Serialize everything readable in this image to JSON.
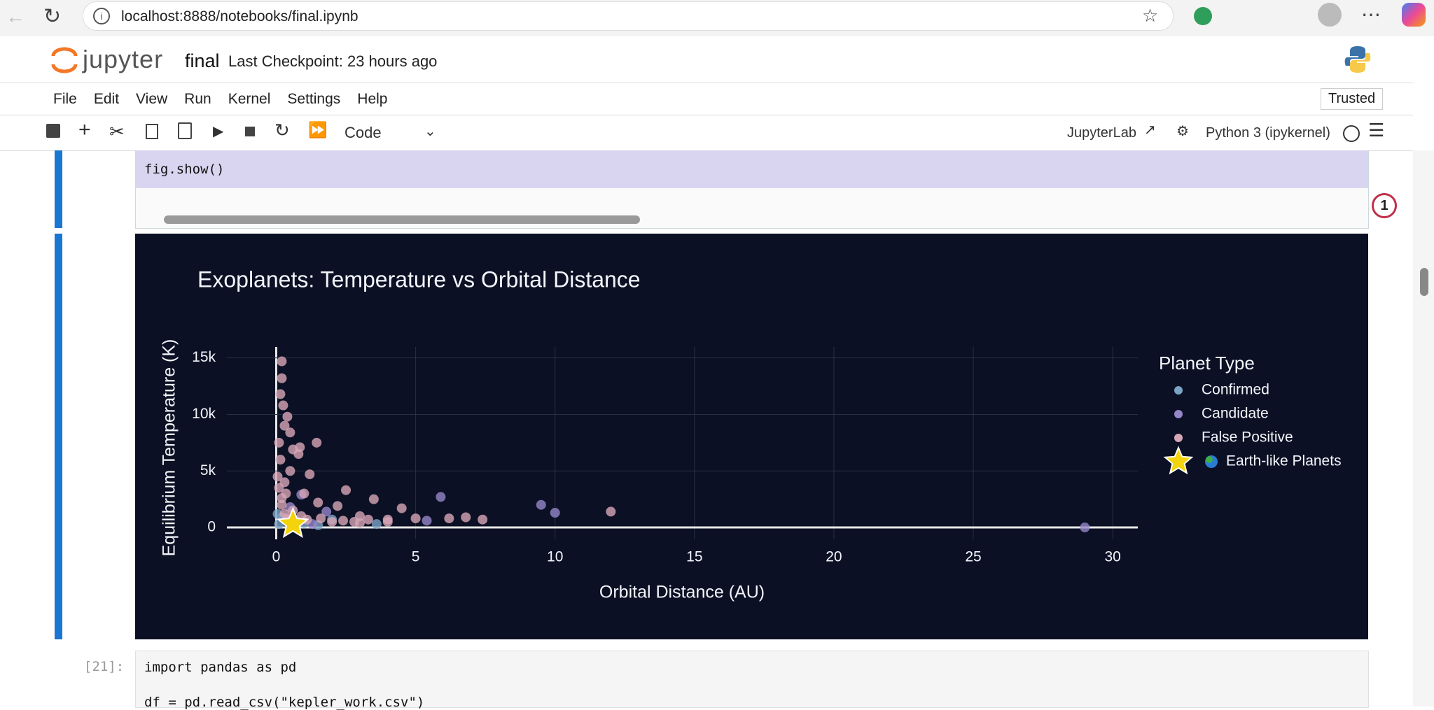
{
  "browser": {
    "url": "localhost:8888/notebooks/final.ipynb"
  },
  "header": {
    "logo": "jupyter",
    "notebook": "final",
    "checkpoint": "Last Checkpoint: 23 hours ago",
    "trusted": "Trusted"
  },
  "menu": [
    "File",
    "Edit",
    "View",
    "Run",
    "Kernel",
    "Settings",
    "Help"
  ],
  "toolbar": {
    "cell_type": "Code",
    "jupyterlab": "JupyterLab",
    "kernel": "Python 3 (ipykernel)"
  },
  "cell": {
    "code": "fig.show()"
  },
  "badge": "1",
  "next_cell": {
    "prompt": "[21]:",
    "lines": [
      "import pandas as pd",
      "df = pd.read_csv(\"kepler_work.csv\")"
    ]
  },
  "chart_data": {
    "type": "scatter",
    "title": "Exoplanets: Temperature vs Orbital Distance",
    "x_label": "Orbital Distance (AU)",
    "y_label": "Equilibrium Temperature (K)",
    "legend_title": "Planet Type",
    "legend": "right",
    "grid": true,
    "xlim": [
      -1.77,
      30.9
    ],
    "ylim": [
      -1050,
      15970
    ],
    "xticks": [
      0,
      5,
      10,
      15,
      20,
      25,
      30
    ],
    "yticks": [
      {
        "value": 0,
        "label": "0"
      },
      {
        "value": 5000,
        "label": "5k"
      },
      {
        "value": 10000,
        "label": "10k"
      },
      {
        "value": 15000,
        "label": "15k"
      }
    ],
    "series": [
      {
        "name": "Confirmed",
        "color": "#7ba3c4",
        "marker": "circle",
        "x": [
          0.1,
          0.4,
          1.0,
          2.0,
          3.6,
          0.05,
          0.2,
          1.5
        ],
        "y": [
          300,
          600,
          400,
          700,
          300,
          1200,
          900,
          200
        ]
      },
      {
        "name": "Candidate",
        "color": "#9586c8",
        "marker": "circle",
        "x": [
          9.5,
          10.0,
          5.9,
          29.0,
          5.4,
          1.8,
          0.9,
          0.5,
          1.3
        ],
        "y": [
          2000,
          1300,
          2700,
          0,
          600,
          1400,
          2900,
          1800,
          300
        ]
      },
      {
        "name": "False Positive",
        "color": "#d7a6b6",
        "marker": "circle",
        "x": [
          0.2,
          0.2,
          0.15,
          0.25,
          0.4,
          0.3,
          0.5,
          0.6,
          0.85,
          1.45,
          0.8,
          1.2,
          2.5,
          3.5,
          1.5,
          2.2,
          4.5,
          5.0,
          6.2,
          6.8,
          7.4,
          12.0,
          3.0,
          4.0,
          1.0,
          0.5,
          0.3,
          0.2,
          0.6,
          2.0,
          3.0,
          4.0,
          0.15,
          0.1,
          0.35,
          0.05,
          0.1,
          0.2,
          0.3,
          0.4,
          0.7,
          0.9,
          1.1,
          1.6,
          2.4,
          2.8,
          3.3
        ],
        "y": [
          14700,
          13200,
          11800,
          10800,
          9800,
          9000,
          8400,
          6900,
          7100,
          7500,
          6500,
          4700,
          3300,
          2500,
          2200,
          1900,
          1700,
          800,
          800,
          900,
          700,
          1400,
          1000,
          700,
          3000,
          5000,
          4000,
          2000,
          1500,
          500,
          400,
          500,
          6000,
          7500,
          3000,
          4500,
          3500,
          2600,
          1200,
          800,
          600,
          1000,
          700,
          800,
          600,
          500,
          700
        ]
      },
      {
        "name": "Earth-like Planets",
        "color": "#f2d30c",
        "marker": "star",
        "x": [
          0.6
        ],
        "y": [
          300
        ]
      }
    ]
  }
}
